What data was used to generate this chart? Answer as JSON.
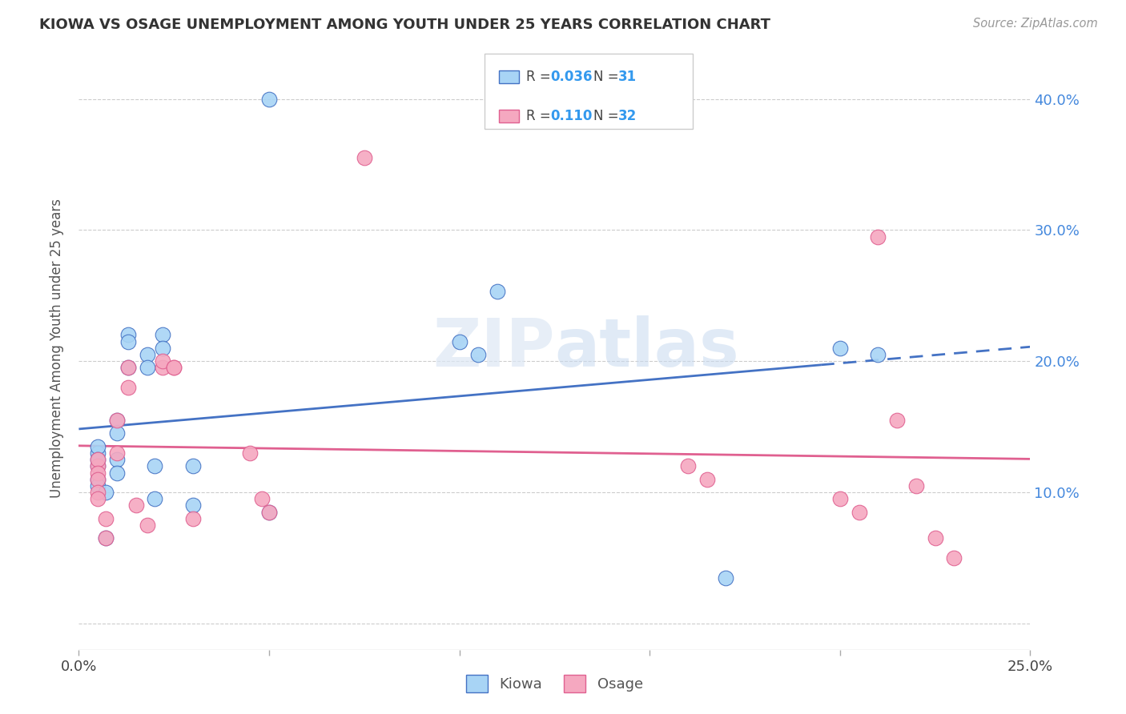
{
  "title": "KIOWA VS OSAGE UNEMPLOYMENT AMONG YOUTH UNDER 25 YEARS CORRELATION CHART",
  "source": "Source: ZipAtlas.com",
  "ylabel": "Unemployment Among Youth under 25 years",
  "xlim": [
    0.0,
    0.25
  ],
  "ylim": [
    -0.02,
    0.44
  ],
  "yticks": [
    0.0,
    0.1,
    0.2,
    0.3,
    0.4
  ],
  "ytick_labels": [
    "",
    "10.0%",
    "20.0%",
    "30.0%",
    "40.0%"
  ],
  "kiowa_R": 0.036,
  "kiowa_N": 31,
  "osage_R": 0.11,
  "osage_N": 32,
  "kiowa_color": "#a8d4f5",
  "osage_color": "#f5a8c0",
  "kiowa_line_color": "#4472C4",
  "osage_line_color": "#E06090",
  "kiowa_x": [
    0.005,
    0.005,
    0.005,
    0.005,
    0.005,
    0.005,
    0.007,
    0.007,
    0.01,
    0.01,
    0.01,
    0.01,
    0.013,
    0.013,
    0.013,
    0.018,
    0.018,
    0.02,
    0.02,
    0.022,
    0.022,
    0.03,
    0.03,
    0.05,
    0.05,
    0.1,
    0.105,
    0.11,
    0.17,
    0.2,
    0.21
  ],
  "kiowa_y": [
    0.12,
    0.13,
    0.135,
    0.125,
    0.11,
    0.105,
    0.065,
    0.1,
    0.155,
    0.145,
    0.125,
    0.115,
    0.22,
    0.215,
    0.195,
    0.205,
    0.195,
    0.12,
    0.095,
    0.22,
    0.21,
    0.09,
    0.12,
    0.085,
    0.4,
    0.215,
    0.205,
    0.253,
    0.035,
    0.21,
    0.205
  ],
  "osage_x": [
    0.005,
    0.005,
    0.005,
    0.005,
    0.005,
    0.005,
    0.007,
    0.007,
    0.01,
    0.01,
    0.013,
    0.013,
    0.015,
    0.018,
    0.022,
    0.022,
    0.025,
    0.025,
    0.03,
    0.045,
    0.048,
    0.05,
    0.075,
    0.16,
    0.165,
    0.2,
    0.205,
    0.21,
    0.215,
    0.22,
    0.225,
    0.23
  ],
  "osage_y": [
    0.12,
    0.125,
    0.115,
    0.11,
    0.1,
    0.095,
    0.08,
    0.065,
    0.155,
    0.13,
    0.195,
    0.18,
    0.09,
    0.075,
    0.195,
    0.2,
    0.195,
    0.195,
    0.08,
    0.13,
    0.095,
    0.085,
    0.355,
    0.12,
    0.11,
    0.095,
    0.085,
    0.295,
    0.155,
    0.105,
    0.065,
    0.05
  ],
  "watermark_zip": "ZIP",
  "watermark_atlas": "atlas",
  "background_color": "#ffffff",
  "grid_color": "#cccccc"
}
